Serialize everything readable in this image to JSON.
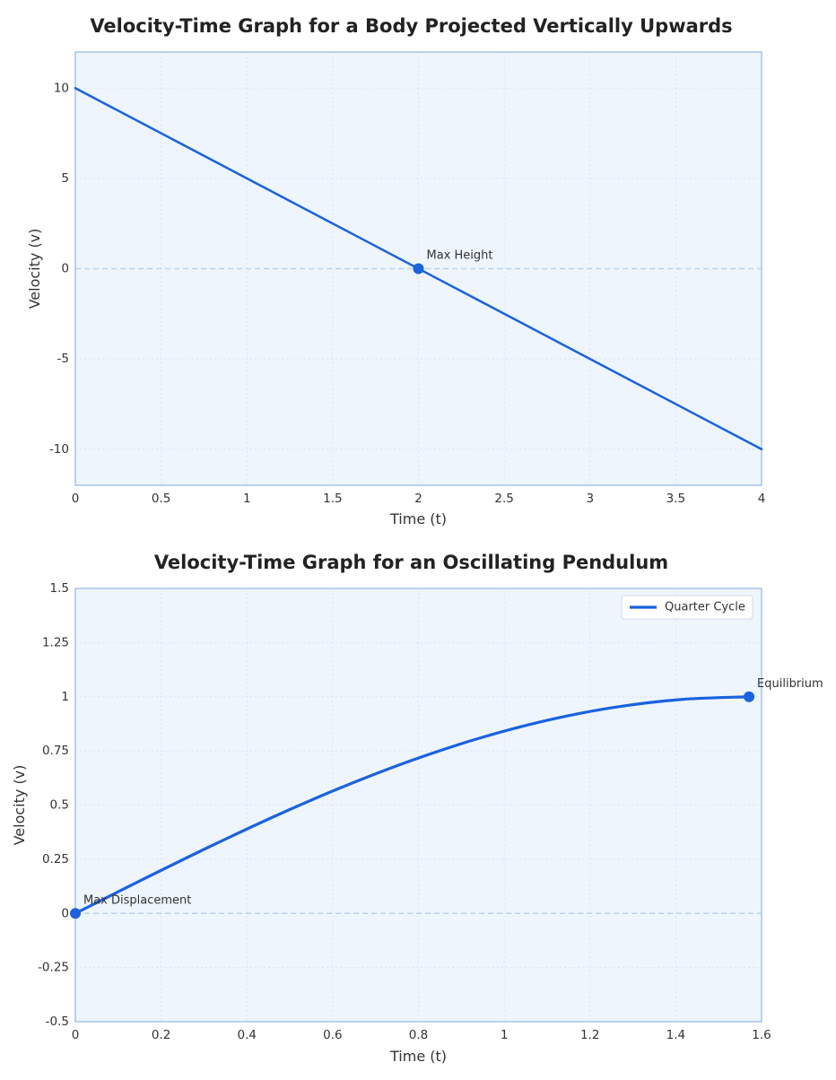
{
  "colors": {
    "line": "#1a62e0",
    "plot_background": "#eef5fd",
    "frame": "#a6c4ee",
    "grid": "#d6e0ee",
    "zero_line": "#b9d3ef",
    "text": "#222222"
  },
  "chart_data": [
    {
      "type": "line",
      "title": "Velocity-Time Graph for a Body Projected Vertically Upwards",
      "xlabel": "Time (t)",
      "ylabel": "Velocity (v)",
      "xlim": [
        0,
        4
      ],
      "ylim": [
        -12,
        12
      ],
      "xticks": [
        0,
        0.5,
        1,
        1.5,
        2,
        2.5,
        3,
        3.5,
        4
      ],
      "xtick_labels": [
        "0",
        "0.5",
        "1",
        "1.5",
        "2",
        "2.5",
        "3",
        "3.5",
        "4"
      ],
      "yticks": [
        -10,
        -5,
        0,
        5,
        10
      ],
      "ytick_labels": [
        "-10",
        "-5",
        "0",
        "5",
        "10"
      ],
      "grid": true,
      "zero_line": true,
      "legend": null,
      "series": [
        {
          "x": [
            0,
            4
          ],
          "y": [
            10,
            -10
          ],
          "smooth": false
        }
      ],
      "points": [
        {
          "x": 2,
          "y": 0,
          "label": "Max Height"
        }
      ]
    },
    {
      "type": "line",
      "title": "Velocity-Time Graph for an Oscillating Pendulum",
      "xlabel": "Time (t)",
      "ylabel": "Velocity (v)",
      "xlim": [
        0,
        1.6
      ],
      "ylim": [
        -0.5,
        1.5
      ],
      "xticks": [
        0,
        0.2,
        0.4,
        0.6,
        0.8,
        1,
        1.2,
        1.4,
        1.6
      ],
      "xtick_labels": [
        "0",
        "0.2",
        "0.4",
        "0.6",
        "0.8",
        "1",
        "1.2",
        "1.4",
        "1.6"
      ],
      "yticks": [
        -0.5,
        -0.25,
        0,
        0.25,
        0.5,
        0.75,
        1,
        1.25,
        1.5
      ],
      "ytick_labels": [
        "-0.5",
        "-0.25",
        "0",
        "0.25",
        "0.5",
        "0.75",
        "1",
        "1.25",
        "1.5"
      ],
      "grid": true,
      "zero_line": true,
      "legend": "top-right",
      "series": [
        {
          "name": "Quarter Cycle",
          "smooth": true,
          "x": [
            0,
            0.1571,
            0.3142,
            0.4712,
            0.6283,
            0.7854,
            0.9425,
            1.0996,
            1.2566,
            1.4137,
            1.5708
          ],
          "y": [
            0,
            0.1564,
            0.309,
            0.454,
            0.5878,
            0.7071,
            0.809,
            0.891,
            0.9511,
            0.9877,
            1
          ]
        }
      ],
      "points": [
        {
          "x": 0,
          "y": 0,
          "label": "Max Displacement"
        },
        {
          "x": 1.5708,
          "y": 1,
          "label": "Equilibrium"
        }
      ]
    }
  ]
}
